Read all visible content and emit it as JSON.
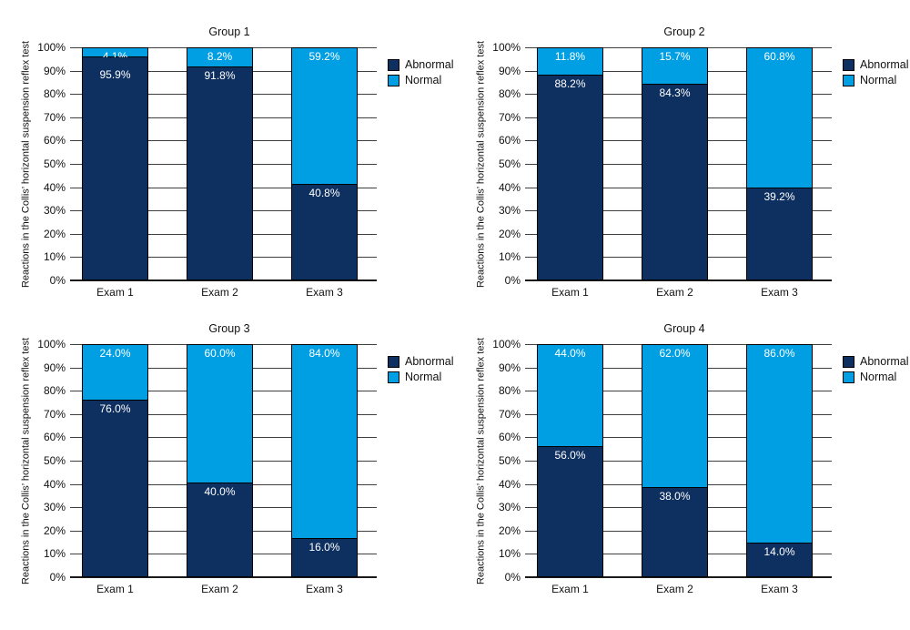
{
  "figure": {
    "background": "#ffffff"
  },
  "colors": {
    "abnormal": "#0e3060",
    "normal": "#009fe3",
    "gridline": "#3f3f3f",
    "axis_text": "#111111",
    "bar_label_text": "#ffffff"
  },
  "legend": {
    "position": "right",
    "items": [
      {
        "label": "Abnormal",
        "color": "#0e3060"
      },
      {
        "label": "Normal",
        "color": "#009fe3"
      }
    ]
  },
  "y_axis": {
    "title": "Reactions in the Collis’ horizontal suspension reflex test",
    "tick_labels": [
      "100%",
      "90%",
      "80%",
      "70%",
      "60%",
      "50%",
      "40%",
      "30%",
      "20%",
      "10%",
      "0%"
    ],
    "min": 0,
    "max": 100,
    "unit": "%",
    "grid": true
  },
  "chart_data": [
    {
      "type": "bar",
      "stacked": true,
      "title": "Group 1",
      "ylabel": "Reactions in the Collis’ horizontal suspension reflex test",
      "ylim": [
        0,
        100
      ],
      "categories": [
        "Exam 1",
        "Exam 2",
        "Exam 3"
      ],
      "series": [
        {
          "name": "Abnormal",
          "color": "#0e3060",
          "values": [
            95.9,
            91.8,
            40.8
          ],
          "labels": [
            "95.9%",
            "91.8%",
            "40.8%"
          ]
        },
        {
          "name": "Normal",
          "color": "#009fe3",
          "values": [
            4.1,
            8.2,
            59.2
          ],
          "labels": [
            "4.1%",
            "8.2%",
            "59.2%"
          ]
        }
      ]
    },
    {
      "type": "bar",
      "stacked": true,
      "title": "Group 2",
      "ylabel": "Reactions in the Collis’ horizontal suspension reflex test",
      "ylim": [
        0,
        100
      ],
      "categories": [
        "Exam 1",
        "Exam 2",
        "Exam 3"
      ],
      "series": [
        {
          "name": "Abnormal",
          "color": "#0e3060",
          "values": [
            88.2,
            84.3,
            39.2
          ],
          "labels": [
            "88.2%",
            "84.3%",
            "39.2%"
          ]
        },
        {
          "name": "Normal",
          "color": "#009fe3",
          "values": [
            11.8,
            15.7,
            60.8
          ],
          "labels": [
            "11.8%",
            "15.7%",
            "60.8%"
          ]
        }
      ]
    },
    {
      "type": "bar",
      "stacked": true,
      "title": "Group 3",
      "ylabel": "Reactions in the Collis’ horizontal suspension reflex test",
      "ylim": [
        0,
        100
      ],
      "categories": [
        "Exam 1",
        "Exam 2",
        "Exam 3"
      ],
      "series": [
        {
          "name": "Abnormal",
          "color": "#0e3060",
          "values": [
            76.0,
            40.0,
            16.0
          ],
          "labels": [
            "76.0%",
            "40.0%",
            "16.0%"
          ]
        },
        {
          "name": "Normal",
          "color": "#009fe3",
          "values": [
            24.0,
            60.0,
            84.0
          ],
          "labels": [
            "24.0%",
            "60.0%",
            "84.0%"
          ]
        }
      ]
    },
    {
      "type": "bar",
      "stacked": true,
      "title": "Group 4",
      "ylabel": "Reactions in the Collis’ horizontal suspension reflex test",
      "ylim": [
        0,
        100
      ],
      "categories": [
        "Exam 1",
        "Exam 2",
        "Exam 3"
      ],
      "series": [
        {
          "name": "Abnormal",
          "color": "#0e3060",
          "values": [
            56.0,
            38.0,
            14.0
          ],
          "labels": [
            "56.0%",
            "38.0%",
            "14.0%"
          ]
        },
        {
          "name": "Normal",
          "color": "#009fe3",
          "values": [
            44.0,
            62.0,
            86.0
          ],
          "labels": [
            "44.0%",
            "62.0%",
            "86.0%"
          ]
        }
      ]
    }
  ]
}
